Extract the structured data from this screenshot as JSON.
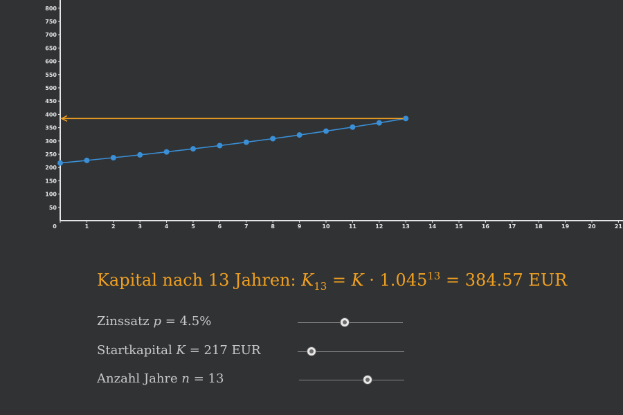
{
  "chart_data": {
    "type": "scatter",
    "title": "",
    "xlabel": "",
    "ylabel": "",
    "xlim": [
      0,
      21
    ],
    "ylim": [
      0,
      800
    ],
    "x_ticks": [
      0,
      1,
      2,
      3,
      4,
      5,
      6,
      7,
      8,
      9,
      10,
      11,
      12,
      13,
      14,
      15,
      16,
      17,
      18,
      19,
      20,
      21
    ],
    "y_ticks": [
      50,
      100,
      150,
      200,
      250,
      300,
      350,
      400,
      450,
      500,
      550,
      600,
      650,
      700,
      750,
      800
    ],
    "grid": false,
    "series": [
      {
        "color": "#3a8fd6",
        "x": [
          0,
          1,
          2,
          3,
          4,
          5,
          6,
          7,
          8,
          9,
          10,
          11,
          12,
          13
        ],
        "y": [
          217,
          226.77,
          236.97,
          247.63,
          258.78,
          270.42,
          282.59,
          295.31,
          308.6,
          322.49,
          337.0,
          352.16,
          368.01,
          384.57
        ]
      }
    ],
    "reference_arrow": {
      "from_x": 13,
      "to_x": 0,
      "y": 384.57,
      "color": "#f0a020"
    }
  },
  "result": {
    "prefix": "Kapital nach 13 Jahren:",
    "var": "K",
    "sub": "13",
    "equals": "=",
    "var2": "K",
    "dot": "·",
    "base": "1.045",
    "exp": "13",
    "equals2": "=",
    "value": "384.57 EUR"
  },
  "sliders": [
    {
      "label": "Zinssatz",
      "var": "p",
      "rest": "= 4.5%",
      "value": 4.5,
      "min": 0,
      "max": 10
    },
    {
      "label": "Startkapital",
      "var": "K",
      "rest": "= 217 EUR",
      "value": 217,
      "min": 100,
      "max": 1000
    },
    {
      "label": "Anzahl Jahre",
      "var": "n",
      "rest": "= 13",
      "value": 13,
      "min": 0,
      "max": 20
    }
  ],
  "colors": {
    "background": "#303234",
    "axis": "#e6e6e6",
    "series": "#3a8fd6",
    "accent": "#f0a020",
    "text": "#c9c9c9"
  }
}
